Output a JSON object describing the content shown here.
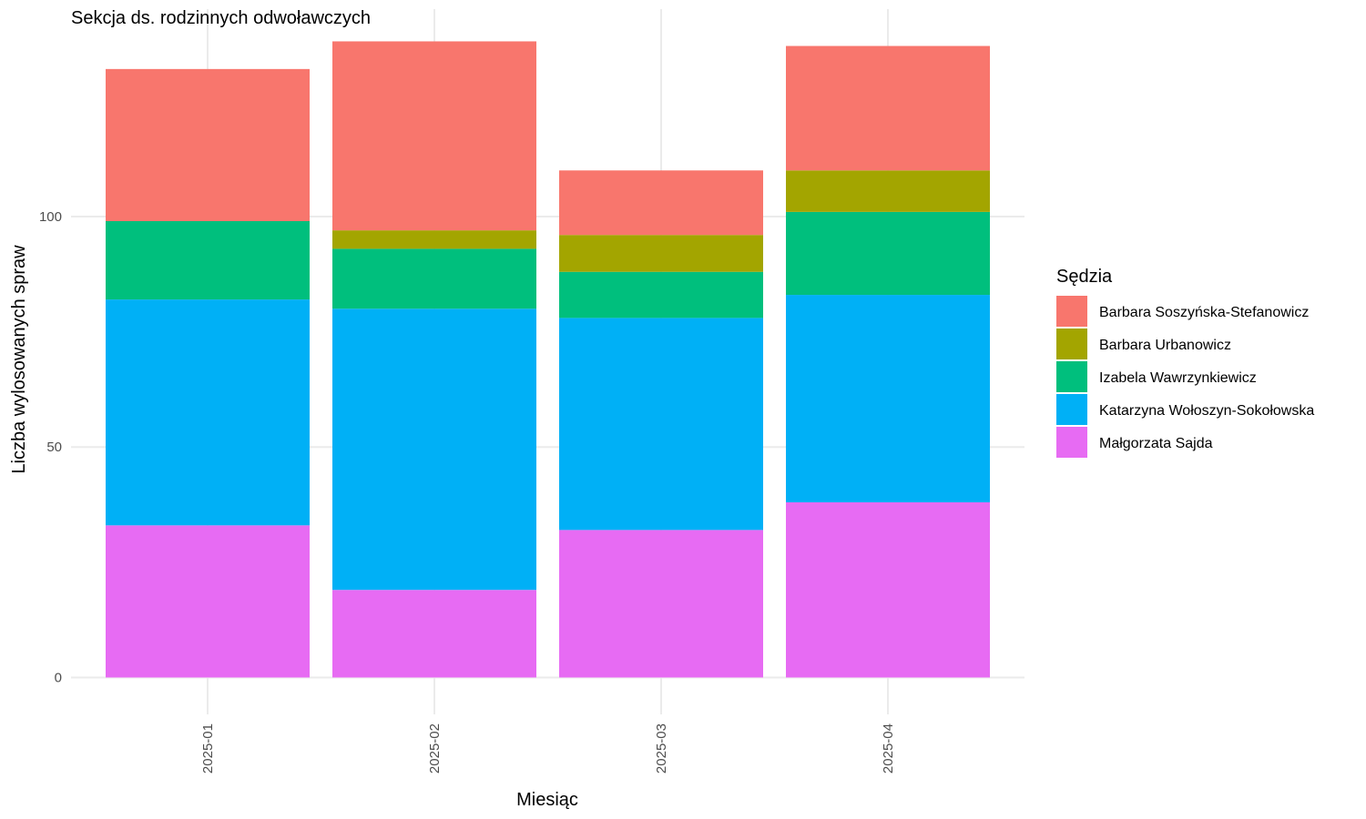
{
  "chart_data": {
    "type": "bar",
    "stacked": true,
    "title": "Sekcja ds. rodzinnych odwoławczych",
    "xlabel": "Miesiąc",
    "ylabel": "Liczba wylosowanych spraw",
    "categories": [
      "2025-01",
      "2025-02",
      "2025-03",
      "2025-04"
    ],
    "ylim": [
      -8,
      145
    ],
    "yticks": [
      0,
      50,
      100
    ],
    "grid": true,
    "legend_title": "Sędzia",
    "legend_position": "right",
    "series": [
      {
        "name": "Małgorzata Sajda",
        "color": "#E76BF3",
        "values": [
          33,
          19,
          32,
          38
        ]
      },
      {
        "name": "Katarzyna Wołoszyn-Sokołowska",
        "color": "#00B0F6",
        "values": [
          49,
          61,
          46,
          45
        ]
      },
      {
        "name": "Izabela Wawrzynkiewicz",
        "color": "#00BF7D",
        "values": [
          17,
          13,
          10,
          18
        ]
      },
      {
        "name": "Barbara Urbanowicz",
        "color": "#A3A500",
        "values": [
          0,
          4,
          8,
          9
        ]
      },
      {
        "name": "Barbara Soszyńska-Stefanowicz",
        "color": "#F8766D",
        "values": [
          33,
          41,
          14,
          27
        ]
      }
    ]
  }
}
